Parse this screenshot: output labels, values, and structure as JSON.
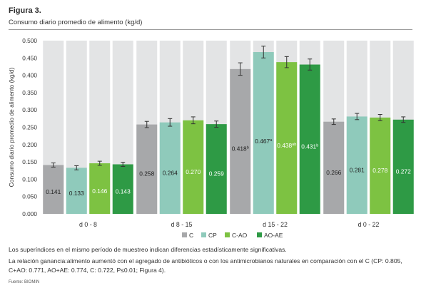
{
  "figure": {
    "label": "Figura 3.",
    "title": "Consumo diario promedio de alimento (kg/d)"
  },
  "chart_data": {
    "type": "bar",
    "ylabel": "Consumo diario promedio de alimento (kg/d)",
    "ylim": [
      0,
      0.5
    ],
    "yticks": [
      "0.000",
      "0.050",
      "0.100",
      "0.150",
      "0.200",
      "0.250",
      "0.300",
      "0.350",
      "0.400",
      "0.450",
      "0.500"
    ],
    "categories": [
      "d 0 - 8",
      "d 8 - 15",
      "d 15 - 22",
      "d 0 - 22"
    ],
    "grid": false,
    "legend_position": "bottom",
    "series": [
      {
        "name": "C",
        "color": "#a7a8aa",
        "values": [
          0.141,
          0.258,
          0.418,
          0.266
        ],
        "errors": [
          0.006,
          0.009,
          0.018,
          0.008
        ],
        "labels": [
          "0.141",
          "0.258",
          "0.418",
          "0.266"
        ],
        "sup": [
          "",
          "",
          "b",
          ""
        ]
      },
      {
        "name": "CP",
        "color": "#8fcabb",
        "values": [
          0.133,
          0.264,
          0.467,
          0.281
        ],
        "errors": [
          0.006,
          0.011,
          0.017,
          0.009
        ],
        "labels": [
          "0.133",
          "0.264",
          "0.467",
          "0.281"
        ],
        "sup": [
          "",
          "",
          "a",
          ""
        ]
      },
      {
        "name": "C-AO",
        "color": "#7dc242",
        "values": [
          0.146,
          0.27,
          0.438,
          0.278
        ],
        "errors": [
          0.006,
          0.01,
          0.016,
          0.009
        ],
        "labels": [
          "0.146",
          "0.270",
          "0.438",
          "0.278"
        ],
        "sup": [
          "",
          "",
          "ab",
          ""
        ]
      },
      {
        "name": "AO-AE",
        "color": "#2e9a45",
        "values": [
          0.143,
          0.259,
          0.431,
          0.272
        ],
        "errors": [
          0.006,
          0.009,
          0.016,
          0.008
        ],
        "labels": [
          "0.143",
          "0.259",
          "0.431",
          "0.272"
        ],
        "sup": [
          "",
          "",
          "b",
          ""
        ]
      }
    ],
    "background_bar_color": "#e3e4e5"
  },
  "notes": {
    "line1": "Los superíndices en el mismo período de muestreo indican diferencias estadísticamente significativas.",
    "line2": "La relación ganancia:alimento aumentó con el agregado de antibióticos o con los antimicrobianos naturales en comparación con el C (CP: 0.805, C+AO: 0.771, AO+AE: 0.774, C: 0.722, P≤0.01; Figura 4).",
    "source": "Fuente: BIOMIN"
  }
}
